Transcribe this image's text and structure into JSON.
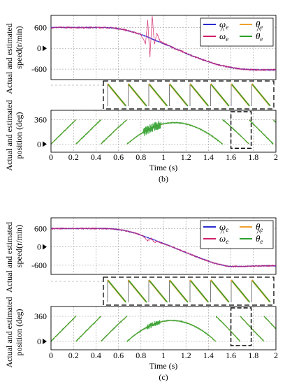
{
  "chart_data": [
    {
      "type": "line",
      "panel": "b",
      "caption": "(b)",
      "xlabel": "Time (s)",
      "xlim": [
        0,
        2
      ],
      "x_ticks": [
        "0",
        "0.2",
        "0.4",
        "0.6",
        "0.8",
        "1",
        "1.2",
        "1.4",
        "1.6",
        "1.8",
        "2"
      ],
      "speed": {
        "ylabel_line1": "Actual and estimated",
        "ylabel_line2": "speed(r/min)",
        "y_ticks": [
          "600",
          "0",
          "-600"
        ],
        "y_tick_values": [
          600,
          0,
          -600
        ],
        "ylim": [
          -900,
          950
        ],
        "reference_marker_label": "0",
        "series": [
          {
            "name": "ω",
            "sub": "e",
            "hat": false,
            "color": "#2b2bd0",
            "x": [
              0,
              0.45,
              0.55,
              0.65,
              0.75,
              0.85,
              0.95,
              1.05,
              1.15,
              1.25,
              1.35,
              1.45,
              1.55,
              1.65,
              1.75,
              1.85,
              1.95,
              2.0
            ],
            "y": [
              600,
              600,
              590,
              540,
              450,
              340,
              200,
              70,
              -70,
              -210,
              -330,
              -440,
              -520,
              -580,
              -610,
              -620,
              -620,
              -620
            ]
          },
          {
            "name": "ω",
            "sub": "e",
            "hat": true,
            "color": "#d0206a",
            "x": [
              0,
              0.45,
              0.55,
              0.65,
              0.75,
              0.8,
              0.84,
              0.86,
              0.88,
              0.9,
              0.92,
              0.94,
              0.97,
              1.05,
              1.15,
              1.25,
              1.35,
              1.45,
              1.55,
              1.65,
              1.75,
              1.85,
              1.95,
              2.0
            ],
            "y": [
              600,
              600,
              590,
              540,
              450,
              400,
              120,
              800,
              -250,
              950,
              100,
              450,
              200,
              70,
              -70,
              -210,
              -330,
              -440,
              -520,
              -580,
              -610,
              -620,
              -620,
              -620
            ]
          }
        ]
      },
      "position": {
        "ylabel_line1": "Actual and estimated",
        "ylabel_line2": "position (deg)",
        "y_ticks": [
          "360",
          "0"
        ],
        "y_tick_values": [
          360,
          0
        ],
        "ylim": [
          -120,
          500
        ],
        "reference_marker_label": "0",
        "series": [
          {
            "name": "θ",
            "sub": "e",
            "hat": false,
            "color": "#f0a030",
            "waveform": "sawtooth",
            "range": [
              0,
              360
            ]
          },
          {
            "name": "θ",
            "sub": "e",
            "hat": true,
            "color": "#2ea02e",
            "waveform": "sawtooth",
            "range": [
              0,
              360
            ]
          }
        ],
        "zoom_window": {
          "x": [
            1.6,
            1.78
          ]
        }
      },
      "legend_position": "top-right"
    },
    {
      "type": "line",
      "panel": "c",
      "caption": "(c)",
      "xlabel": "Time (s)",
      "xlim": [
        0,
        2
      ],
      "x_ticks": [
        "0",
        "0.2",
        "0.4",
        "0.6",
        "0.8",
        "1",
        "1.2",
        "1.4",
        "1.6",
        "1.8",
        "2"
      ],
      "speed": {
        "ylabel_line1": "Actual and estimated",
        "ylabel_line2": "speed(r/min)",
        "y_ticks": [
          "600",
          "0",
          "-600"
        ],
        "y_tick_values": [
          600,
          0,
          -600
        ],
        "ylim": [
          -900,
          950
        ],
        "reference_marker_label": "0",
        "series": [
          {
            "name": "ω",
            "sub": "e",
            "hat": false,
            "color": "#2b2bd0",
            "x": [
              0,
              0.45,
              0.55,
              0.65,
              0.75,
              0.85,
              0.95,
              1.05,
              1.15,
              1.25,
              1.35,
              1.45,
              1.55,
              1.6,
              1.7,
              1.8,
              1.9,
              2.0
            ],
            "y": [
              600,
              600,
              590,
              540,
              450,
              320,
              180,
              40,
              -110,
              -260,
              -400,
              -530,
              -620,
              -640,
              -640,
              -630,
              -620,
              -620
            ]
          },
          {
            "name": "ω",
            "sub": "e",
            "hat": true,
            "color": "#d0206a",
            "x": [
              0,
              0.45,
              0.55,
              0.65,
              0.75,
              0.82,
              0.86,
              0.89,
              0.92,
              0.95,
              1.05,
              1.15,
              1.25,
              1.35,
              1.45,
              1.55,
              1.6,
              1.7,
              1.8,
              1.9,
              2.0
            ],
            "y": [
              600,
              600,
              590,
              540,
              450,
              360,
              200,
              280,
              150,
              170,
              40,
              -110,
              -260,
              -400,
              -530,
              -620,
              -640,
              -640,
              -630,
              -620,
              -620
            ]
          }
        ]
      },
      "position": {
        "ylabel_line1": "Actual and estimated",
        "ylabel_line2": "position (deg)",
        "y_ticks": [
          "360",
          "0"
        ],
        "y_tick_values": [
          360,
          0
        ],
        "ylim": [
          -120,
          500
        ],
        "reference_marker_label": "0",
        "series": [
          {
            "name": "θ",
            "sub": "e",
            "hat": false,
            "color": "#f0a030",
            "waveform": "sawtooth",
            "range": [
              0,
              360
            ]
          },
          {
            "name": "θ",
            "sub": "e",
            "hat": true,
            "color": "#2ea02e",
            "waveform": "sawtooth",
            "range": [
              0,
              360
            ]
          }
        ],
        "zoom_window": {
          "x": [
            1.6,
            1.78
          ]
        }
      },
      "legend_position": "top-right"
    }
  ]
}
